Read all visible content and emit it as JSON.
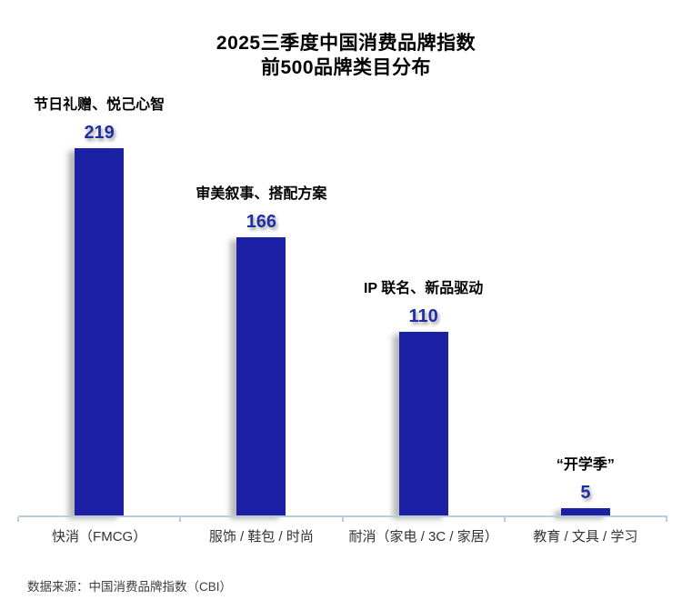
{
  "title": {
    "line1": "2025三季度中国消费品牌指数",
    "line2": "前500品牌类目分布"
  },
  "footer": {
    "source": "数据来源：中国消费品牌指数（CBI）"
  },
  "colors": {
    "bar": "#1B20A5",
    "value_text": "#1F2FA3",
    "axis": "#B9CEDA",
    "title_text": "#000000",
    "category_text": "#333333",
    "footer_text": "#404040"
  },
  "chart_data": {
    "type": "bar",
    "title": "2025三季度中国消费品牌指数 前500品牌类目分布",
    "categories": [
      "快消（FMCG）",
      "服饰 / 鞋包 / 时尚",
      "耐消（家电 / 3C / 家居）",
      "教育 / 文具 / 学习"
    ],
    "values": [
      219,
      166,
      110,
      5
    ],
    "annotations": [
      "节日礼赠、悦己心智",
      "审美叙事、搭配方案",
      "IP 联名、新品驱动",
      "“开学季”"
    ],
    "xlabel": "",
    "ylabel": "",
    "ylim": [
      0,
      230
    ],
    "grid": false,
    "legend": null,
    "value_labels_shown": true,
    "bar_color": "#1B20A5"
  }
}
